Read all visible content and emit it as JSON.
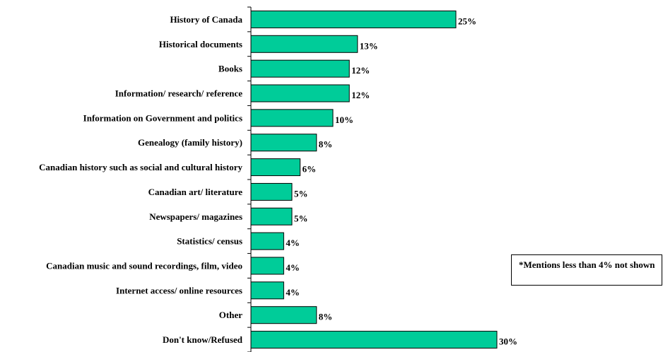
{
  "chart_data": {
    "type": "bar",
    "orientation": "horizontal",
    "categories": [
      "History of Canada",
      "Historical documents",
      "Books",
      "Information/ research/ reference",
      "Information on Government and politics",
      "Genealogy (family history)",
      "Canadian history such as social and cultural history",
      "Canadian art/ literature",
      "Newspapers/ magazines",
      "Statistics/ census",
      "Canadian music and sound recordings, film, video",
      "Internet access/ online resources",
      "Other",
      "Don't know/Refused"
    ],
    "values": [
      25,
      13,
      12,
      12,
      10,
      8,
      6,
      5,
      5,
      4,
      4,
      4,
      8,
      30
    ],
    "value_labels": [
      "25%",
      "13%",
      "12%",
      "12%",
      "10%",
      "8%",
      "6%",
      "5%",
      "5%",
      "4%",
      "4%",
      "4%",
      "8%",
      "30%"
    ],
    "xlim": [
      0,
      30
    ],
    "bar_color": "#00CC99",
    "grid": false
  },
  "note": "*Mentions less than 4% not shown"
}
